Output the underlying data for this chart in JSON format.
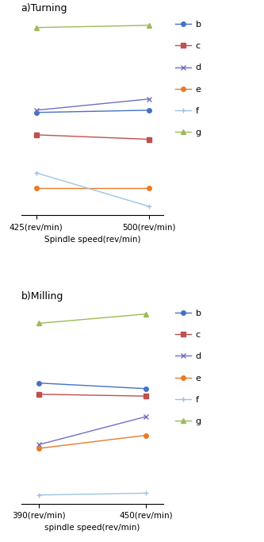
{
  "turning": {
    "x": [
      425,
      500
    ],
    "series": {
      "b": {
        "y": [
          0.72,
          0.73
        ],
        "color": "#4472C4",
        "marker": "o",
        "linestyle": "-"
      },
      "c": {
        "y": [
          0.62,
          0.6
        ],
        "color": "#C0504D",
        "marker": "s",
        "linestyle": "-"
      },
      "d": {
        "y": [
          0.73,
          0.78
        ],
        "color": "#7070C0",
        "marker": "x",
        "linestyle": "-"
      },
      "e": {
        "y": [
          0.38,
          0.38
        ],
        "color": "#E87B2A",
        "marker": "o",
        "linestyle": "-"
      },
      "f": {
        "y": [
          0.45,
          0.3
        ],
        "color": "#9DC3E6",
        "marker": "+",
        "linestyle": "-"
      },
      "g": {
        "y": [
          1.1,
          1.11
        ],
        "color": "#9BBB59",
        "marker": "^",
        "linestyle": "-"
      }
    },
    "xlabel": "Spindle speed(rev/min)",
    "xticks": [
      425,
      500
    ],
    "xticklabels": [
      "425(rev/min)",
      "500(rev/min)"
    ],
    "title": "a)Turning"
  },
  "milling": {
    "x": [
      390,
      450
    ],
    "series": {
      "b": {
        "y": [
          0.68,
          0.65
        ],
        "color": "#4472C4",
        "marker": "o",
        "linestyle": "-"
      },
      "c": {
        "y": [
          0.62,
          0.61
        ],
        "color": "#C0504D",
        "marker": "s",
        "linestyle": "-"
      },
      "d": {
        "y": [
          0.35,
          0.5
        ],
        "color": "#7070C0",
        "marker": "x",
        "linestyle": "-"
      },
      "e": {
        "y": [
          0.33,
          0.4
        ],
        "color": "#E87B2A",
        "marker": "o",
        "linestyle": "-"
      },
      "f": {
        "y": [
          0.08,
          0.09
        ],
        "color": "#9DC3E6",
        "marker": "+",
        "linestyle": "-"
      },
      "g": {
        "y": [
          1.0,
          1.05
        ],
        "color": "#9BBB59",
        "marker": "^",
        "linestyle": "-"
      }
    },
    "xlabel": "spindle speed(rev/min)",
    "xticks": [
      390,
      450
    ],
    "xticklabels": [
      "390(rev/min)",
      "450(rev/min)"
    ],
    "title": "b)Milling"
  },
  "legend_order": [
    "b",
    "c",
    "d",
    "e",
    "f",
    "g"
  ],
  "legend_colors": {
    "b": "#4472C4",
    "c": "#C0504D",
    "d": "#7070C0",
    "e": "#E87B2A",
    "f": "#9DC3E6",
    "g": "#9BBB59"
  },
  "legend_markers": {
    "b": "o",
    "c": "s",
    "d": "x",
    "e": "o",
    "f": "+",
    "g": "^"
  },
  "fig_width": 3.33,
  "fig_height": 6.83,
  "dpi": 100
}
